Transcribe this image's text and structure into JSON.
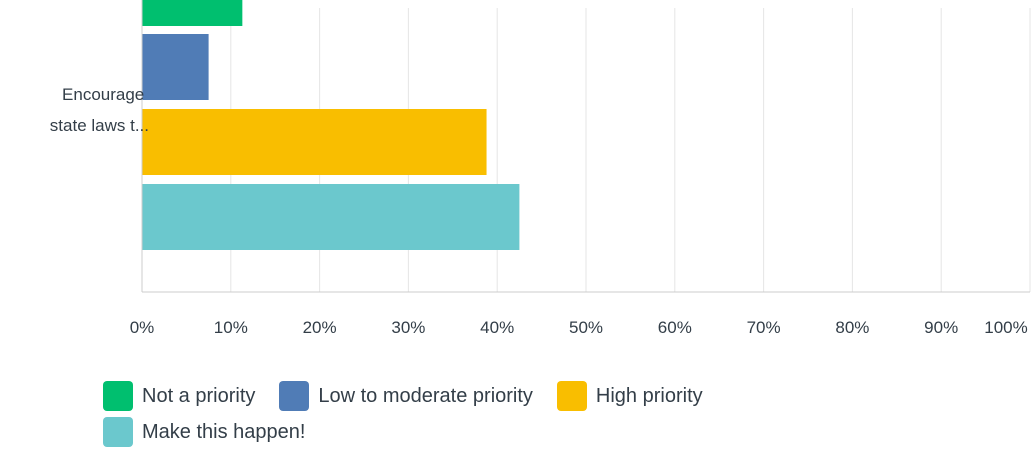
{
  "chart_data": {
    "type": "bar",
    "orientation": "horizontal",
    "categories": [
      "Encourage state laws t..."
    ],
    "category_label_lines": [
      "Encourage",
      "state laws t..."
    ],
    "series": [
      {
        "name": "Not a priority",
        "values": [
          11.3
        ],
        "color": "#00bf6f"
      },
      {
        "name": "Low to moderate priority",
        "values": [
          7.5
        ],
        "color": "#507cb6"
      },
      {
        "name": "High priority",
        "values": [
          38.8
        ],
        "color": "#f9be00"
      },
      {
        "name": "Make this happen!",
        "values": [
          42.5
        ],
        "color": "#6bc8cd"
      }
    ],
    "xlim": [
      0,
      100
    ],
    "x_ticks": [
      "0%",
      "10%",
      "20%",
      "30%",
      "40%",
      "50%",
      "60%",
      "70%",
      "80%",
      "90%",
      "100%"
    ],
    "grid": true,
    "legend_position": "bottom-left",
    "gridline_color": "#e5e5e5",
    "axis_color": "#cccccc"
  }
}
